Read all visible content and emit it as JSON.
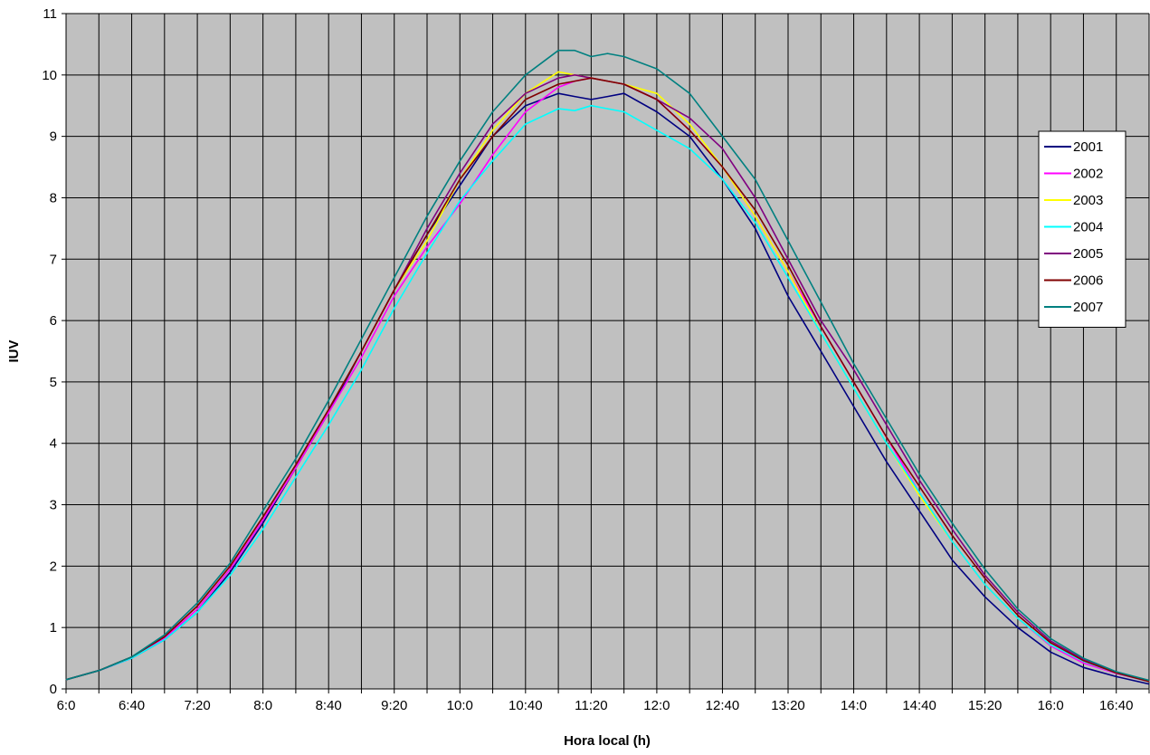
{
  "chart_data": {
    "type": "line",
    "title": "",
    "xlabel": "Hora local (h)",
    "ylabel": "IUV",
    "ylim": [
      0,
      11
    ],
    "xlim_minutes_from": "6:0",
    "grid": true,
    "legend_position": "right",
    "x_tick_labels": [
      "6:0",
      "6:40",
      "7:20",
      "8:0",
      "8:40",
      "9:20",
      "10:0",
      "10:40",
      "11:20",
      "12:0",
      "12:40",
      "13:20",
      "14:0",
      "14:40",
      "15:20",
      "16:0",
      "16:40"
    ],
    "y_tick_labels": [
      "0",
      "1",
      "2",
      "3",
      "4",
      "5",
      "6",
      "7",
      "8",
      "9",
      "10",
      "11"
    ],
    "colors": {
      "plot_background": "#c0c0c0",
      "grid": "#000000"
    },
    "x": [
      "6:00",
      "6:20",
      "6:40",
      "7:00",
      "7:20",
      "7:40",
      "8:00",
      "8:20",
      "8:40",
      "9:00",
      "9:20",
      "9:40",
      "10:00",
      "10:20",
      "10:40",
      "11:00",
      "11:10",
      "11:20",
      "11:30",
      "11:40",
      "12:00",
      "12:20",
      "12:40",
      "13:00",
      "13:20",
      "13:40",
      "14:00",
      "14:20",
      "14:40",
      "15:00",
      "15:20",
      "15:40",
      "16:00",
      "16:20",
      "16:40",
      "17:00"
    ],
    "series": [
      {
        "name": "2001",
        "color": "#000080",
        "values": [
          0.15,
          0.3,
          0.5,
          0.8,
          1.25,
          1.9,
          2.7,
          3.6,
          4.5,
          5.5,
          6.5,
          7.4,
          8.2,
          9.0,
          9.5,
          9.7,
          9.65,
          9.6,
          9.65,
          9.7,
          9.4,
          9.0,
          8.3,
          7.5,
          6.4,
          5.5,
          4.6,
          3.7,
          2.9,
          2.1,
          1.5,
          1.0,
          0.6,
          0.35,
          0.2,
          0.08
        ]
      },
      {
        "name": "2002",
        "color": "#ff00ff",
        "values": [
          0.15,
          0.3,
          0.5,
          0.82,
          1.3,
          1.95,
          2.75,
          3.6,
          4.5,
          5.4,
          6.4,
          7.2,
          7.9,
          8.7,
          9.4,
          9.8,
          9.9,
          9.95,
          9.9,
          9.85,
          9.6,
          9.1,
          8.5,
          7.7,
          6.8,
          5.9,
          5.0,
          4.1,
          3.2,
          2.4,
          1.7,
          1.15,
          0.7,
          0.42,
          0.25,
          0.12
        ]
      },
      {
        "name": "2003",
        "color": "#ffff00",
        "values": [
          0.15,
          0.3,
          0.52,
          0.85,
          1.35,
          2.0,
          2.8,
          3.65,
          4.55,
          5.5,
          6.5,
          7.3,
          8.3,
          9.1,
          9.7,
          10.05,
          10.0,
          9.95,
          9.9,
          9.85,
          9.7,
          9.2,
          8.5,
          7.7,
          6.8,
          5.8,
          4.9,
          4.0,
          3.15,
          2.4,
          1.7,
          1.15,
          0.72,
          0.45,
          0.26,
          0.12
        ]
      },
      {
        "name": "2004",
        "color": "#00ffff",
        "values": [
          0.15,
          0.3,
          0.5,
          0.8,
          1.25,
          1.85,
          2.6,
          3.45,
          4.3,
          5.2,
          6.2,
          7.1,
          7.95,
          8.6,
          9.2,
          9.45,
          9.42,
          9.5,
          9.45,
          9.4,
          9.1,
          8.8,
          8.3,
          7.6,
          6.7,
          5.8,
          4.9,
          4.0,
          3.2,
          2.4,
          1.7,
          1.15,
          0.72,
          0.45,
          0.26,
          0.12
        ]
      },
      {
        "name": "2005",
        "color": "#800080",
        "values": [
          0.15,
          0.3,
          0.52,
          0.85,
          1.35,
          2.0,
          2.8,
          3.65,
          4.55,
          5.5,
          6.5,
          7.5,
          8.4,
          9.2,
          9.7,
          9.95,
          10.0,
          9.95,
          9.9,
          9.85,
          9.6,
          9.3,
          8.8,
          8.0,
          7.0,
          6.0,
          5.2,
          4.3,
          3.4,
          2.6,
          1.85,
          1.25,
          0.78,
          0.48,
          0.27,
          0.12
        ]
      },
      {
        "name": "2006",
        "color": "#800000",
        "values": [
          0.15,
          0.3,
          0.52,
          0.85,
          1.35,
          2.0,
          2.8,
          3.65,
          4.55,
          5.5,
          6.5,
          7.4,
          8.3,
          9.0,
          9.6,
          9.85,
          9.9,
          9.95,
          9.9,
          9.85,
          9.6,
          9.1,
          8.5,
          7.8,
          6.9,
          5.9,
          5.0,
          4.1,
          3.3,
          2.5,
          1.8,
          1.2,
          0.75,
          0.46,
          0.26,
          0.12
        ]
      },
      {
        "name": "2007",
        "color": "#008080",
        "values": [
          0.15,
          0.3,
          0.52,
          0.88,
          1.4,
          2.05,
          2.9,
          3.75,
          4.7,
          5.7,
          6.7,
          7.7,
          8.6,
          9.4,
          10.0,
          10.4,
          10.4,
          10.3,
          10.35,
          10.3,
          10.1,
          9.7,
          9.0,
          8.3,
          7.3,
          6.3,
          5.3,
          4.4,
          3.5,
          2.7,
          1.95,
          1.3,
          0.82,
          0.5,
          0.28,
          0.14
        ]
      }
    ]
  }
}
